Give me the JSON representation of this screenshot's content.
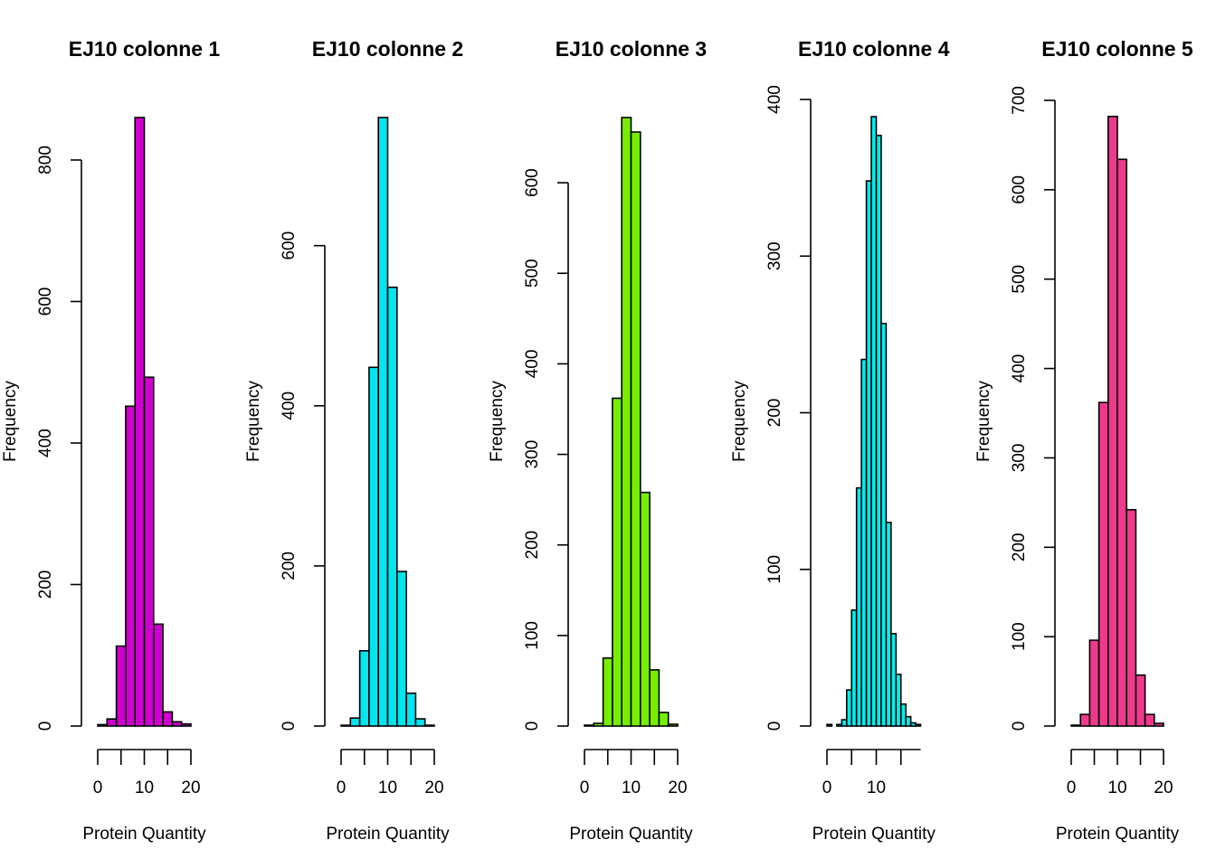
{
  "chart_data": [
    {
      "type": "bar",
      "title": "EJ10 colonne 1",
      "xlabel": "Protein Quantity",
      "ylabel": "Frequency",
      "color": "#CD00CD",
      "bin_width": 2,
      "x_start": 0,
      "values": [
        2,
        10,
        113,
        452,
        860,
        493,
        144,
        20,
        6,
        3
      ],
      "xlim": [
        0,
        20
      ],
      "xticks": [
        0,
        10,
        20
      ],
      "ylim": [
        0,
        860
      ],
      "yticks": [
        0,
        200,
        400,
        600,
        800
      ]
    },
    {
      "type": "bar",
      "title": "EJ10 colonne 2",
      "xlabel": "Protein Quantity",
      "ylabel": "Frequency",
      "color": "#00E5EE",
      "bin_width": 2,
      "x_start": 0,
      "values": [
        1,
        10,
        94,
        448,
        760,
        548,
        193,
        41,
        9,
        1
      ],
      "xlim": [
        0,
        20
      ],
      "xticks": [
        0,
        10,
        20
      ],
      "ylim": [
        0,
        760
      ],
      "yticks": [
        0,
        200,
        400,
        600
      ]
    },
    {
      "type": "bar",
      "title": "EJ10 colonne 3",
      "xlabel": "Protein Quantity",
      "ylabel": "Frequency",
      "color": "#76EE00",
      "bin_width": 2,
      "x_start": 0,
      "values": [
        1,
        3,
        75,
        362,
        672,
        656,
        258,
        62,
        15,
        2
      ],
      "xlim": [
        0,
        20
      ],
      "xticks": [
        0,
        10,
        20
      ],
      "ylim": [
        0,
        672
      ],
      "yticks": [
        0,
        100,
        200,
        300,
        400,
        500,
        600
      ]
    },
    {
      "type": "bar",
      "title": "EJ10 colonne 4",
      "xlabel": "Protein Quantity",
      "ylabel": "Frequency",
      "color": "#00EEEE",
      "bin_width": 1,
      "x_start": 0,
      "values": [
        1,
        0,
        1,
        4,
        23,
        74,
        152,
        234,
        348,
        389,
        377,
        257,
        130,
        59,
        33,
        14,
        6,
        2,
        1
      ],
      "xlim": [
        0,
        19
      ],
      "xticks": [
        0,
        10
      ],
      "ylim": [
        0,
        400
      ],
      "yticks": [
        0,
        100,
        200,
        300,
        400
      ]
    },
    {
      "type": "bar",
      "title": "EJ10 colonne 5",
      "xlabel": "Protein Quantity",
      "ylabel": "Frequency",
      "color": "#EE3A8C",
      "bin_width": 2,
      "x_start": 0,
      "values": [
        1,
        13,
        96,
        362,
        682,
        634,
        242,
        57,
        13,
        3
      ],
      "xlim": [
        0,
        20
      ],
      "xticks": [
        0,
        10,
        20
      ],
      "ylim": [
        0,
        700
      ],
      "yticks": [
        0,
        100,
        200,
        300,
        400,
        500,
        600,
        700
      ]
    }
  ]
}
